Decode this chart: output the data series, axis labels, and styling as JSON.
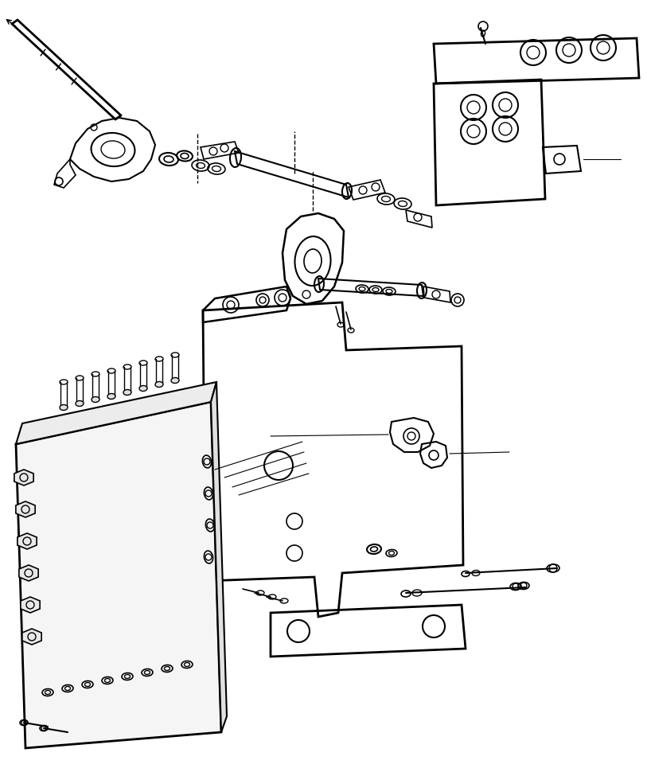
{
  "bg_color": "#ffffff",
  "line_color": "#000000",
  "fig_width": 8.13,
  "fig_height": 9.65,
  "dpi": 100
}
